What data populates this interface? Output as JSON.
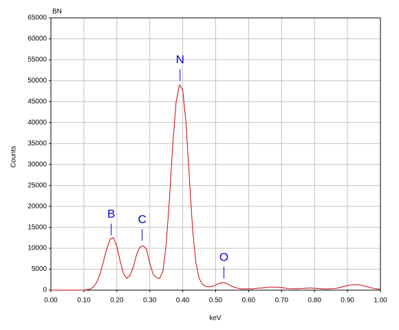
{
  "chart_data": {
    "type": "line",
    "title": "BN",
    "x_label": "keV",
    "y_label": "Counts",
    "x": [
      0,
      0.01,
      0.02,
      0.03,
      0.04,
      0.05,
      0.06,
      0.07,
      0.08,
      0.09,
      0.1,
      0.11,
      0.12,
      0.13,
      0.14,
      0.15,
      0.16,
      0.17,
      0.18,
      0.19,
      0.2,
      0.21,
      0.22,
      0.23,
      0.24,
      0.25,
      0.26,
      0.27,
      0.28,
      0.29,
      0.3,
      0.31,
      0.32,
      0.33,
      0.34,
      0.35,
      0.36,
      0.37,
      0.38,
      0.39,
      0.4,
      0.41,
      0.42,
      0.43,
      0.44,
      0.45,
      0.46,
      0.47,
      0.48,
      0.49,
      0.5,
      0.51,
      0.52,
      0.53,
      0.54,
      0.55,
      0.56,
      0.57,
      0.58,
      0.59,
      0.6,
      0.61,
      0.62,
      0.63,
      0.64,
      0.65,
      0.66,
      0.67,
      0.68,
      0.69,
      0.7,
      0.71,
      0.72,
      0.73,
      0.74,
      0.75,
      0.76,
      0.77,
      0.78,
      0.79,
      0.8,
      0.81,
      0.82,
      0.83,
      0.84,
      0.85,
      0.86,
      0.87,
      0.88,
      0.89,
      0.9,
      0.91,
      0.92,
      0.93,
      0.94,
      0.95,
      0.96,
      0.97,
      0.98,
      0.99,
      1
    ],
    "series": [
      {
        "color": "#cc0000",
        "values": [
          0,
          0,
          0,
          0,
          0,
          0,
          0,
          0,
          0,
          0,
          0,
          100,
          300,
          800,
          2000,
          4000,
          7000,
          10000,
          12200,
          12500,
          10500,
          7000,
          4000,
          2800,
          3500,
          5500,
          8500,
          10300,
          10600,
          9800,
          6500,
          3800,
          3000,
          2800,
          4500,
          11000,
          22000,
          35000,
          45000,
          49000,
          47800,
          40000,
          27000,
          14500,
          6500,
          2800,
          1400,
          900,
          800,
          900,
          1200,
          1600,
          1800,
          1700,
          1300,
          900,
          600,
          400,
          300,
          300,
          300,
          300,
          400,
          500,
          500,
          600,
          700,
          700,
          700,
          650,
          600,
          500,
          400,
          350,
          350,
          350,
          400,
          450,
          500,
          500,
          450,
          400,
          350,
          300,
          300,
          350,
          400,
          500,
          700,
          900,
          1100,
          1200,
          1300,
          1300,
          1200,
          1000,
          800,
          600,
          400,
          300,
          200
        ]
      }
    ],
    "annotations": [
      {
        "text": "B",
        "x": 0.183,
        "y": 13100
      },
      {
        "text": "C",
        "x": 0.277,
        "y": 11800
      },
      {
        "text": "N",
        "x": 0.392,
        "y": 50000
      },
      {
        "text": "O",
        "x": 0.525,
        "y": 2800
      }
    ],
    "annotation_color": "#0000cc",
    "xlim": [
      0,
      1
    ],
    "ylim": [
      0,
      65000
    ],
    "xticks": [
      {
        "value": 0,
        "label": "0.00"
      },
      {
        "value": 0.1,
        "label": "0.10"
      },
      {
        "value": 0.2,
        "label": "0.20"
      },
      {
        "value": 0.3,
        "label": "0.30"
      },
      {
        "value": 0.4,
        "label": "0.40"
      },
      {
        "value": 0.5,
        "label": "0.50"
      },
      {
        "value": 0.6,
        "label": "0.60"
      },
      {
        "value": 0.7,
        "label": "0.70"
      },
      {
        "value": 0.8,
        "label": "0.80"
      },
      {
        "value": 0.9,
        "label": "0.90"
      },
      {
        "value": 1,
        "label": "1.00"
      }
    ],
    "yticks": [
      0,
      5000,
      10000,
      15000,
      20000,
      25000,
      30000,
      35000,
      40000,
      45000,
      50000,
      55000,
      60000,
      65000
    ],
    "grid": true
  }
}
